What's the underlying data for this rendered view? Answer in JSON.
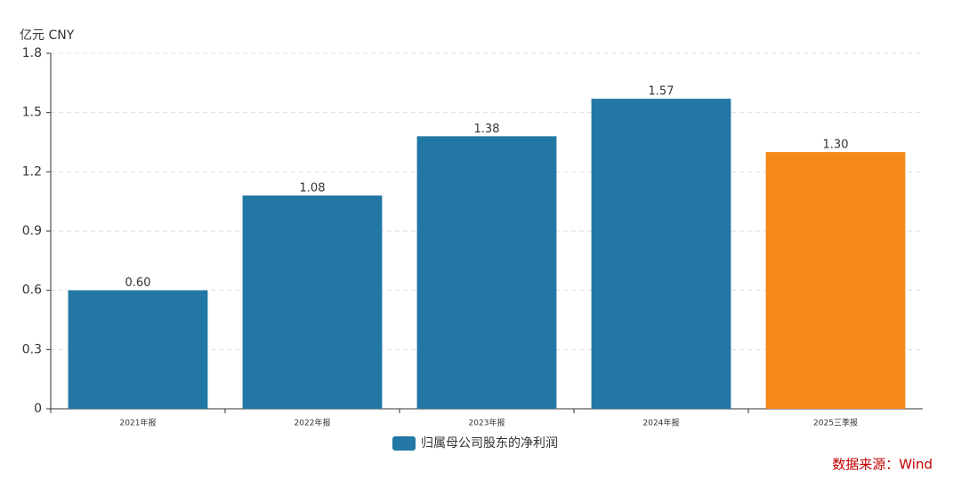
{
  "chart_data": {
    "type": "bar",
    "y_unit": "亿元  CNY",
    "categories": [
      "2021年报",
      "2022年报",
      "2023年报",
      "2024年报",
      "2025三季报"
    ],
    "series": [
      {
        "name": "归属母公司股东的净利润",
        "color": "#2277a4",
        "bar_colors": [
          "#2277a4",
          "#2277a4",
          "#2277a4",
          "#2277a4",
          "#f5891a"
        ],
        "values": [
          0.6,
          1.08,
          1.38,
          1.57,
          1.3
        ],
        "value_labels": [
          "0.60",
          "1.08",
          "1.38",
          "1.57",
          "1.30"
        ]
      }
    ],
    "ylim": [
      0,
      1.8
    ],
    "yticks": [
      0,
      0.3,
      0.6,
      0.9,
      1.2,
      1.5,
      1.8
    ],
    "grid": true,
    "legend": "bottom",
    "source": "数据来源：Wind"
  }
}
